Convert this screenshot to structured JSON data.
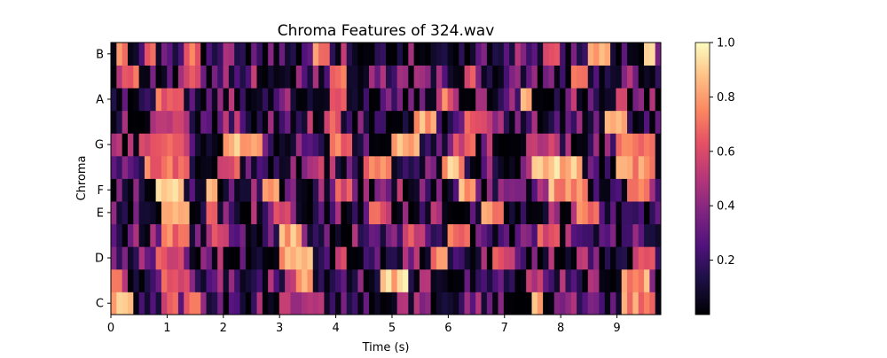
{
  "chart_data": {
    "type": "heatmap",
    "title": "Chroma Features of 324.wav",
    "xlabel": "Time (s)",
    "ylabel": "Chroma",
    "x_range": [
      0,
      9.78
    ],
    "x_ticks": [
      0,
      1,
      2,
      3,
      4,
      5,
      6,
      7,
      8,
      9
    ],
    "y_ticks": [
      "C",
      "D",
      "E",
      "F",
      "G",
      "A",
      "B"
    ],
    "pitch_classes": [
      "C",
      "C#",
      "D",
      "D#",
      "E",
      "F",
      "F#",
      "G",
      "G#",
      "A",
      "A#",
      "B"
    ],
    "frames": 98,
    "frame_duration_s": 0.0998,
    "colorbar": {
      "range": [
        0,
        1
      ],
      "ticks": [
        "0.2",
        "0.4",
        "0.6",
        "0.8",
        "1.0"
      ]
    },
    "colormap": "magma",
    "grid": false,
    "segments": {
      "C": [
        [
          0.0,
          0.35,
          0.95
        ],
        [
          0.9,
          1.2,
          0.7
        ],
        [
          1.3,
          1.6,
          0.8
        ],
        [
          3.0,
          3.8,
          0.55
        ],
        [
          7.5,
          7.7,
          0.9
        ],
        [
          9.1,
          9.7,
          0.85
        ]
      ],
      "C#": [
        [
          0.0,
          0.2,
          0.8
        ],
        [
          0.9,
          1.4,
          0.7
        ],
        [
          3.3,
          3.6,
          0.9
        ],
        [
          4.8,
          5.3,
          1.0
        ],
        [
          7.4,
          7.7,
          0.6
        ],
        [
          9.1,
          9.6,
          0.9
        ]
      ],
      "D": [
        [
          0.8,
          1.3,
          0.7
        ],
        [
          3.0,
          3.6,
          0.95
        ],
        [
          4.0,
          4.2,
          0.7
        ],
        [
          5.7,
          6.0,
          0.85
        ],
        [
          6.8,
          7.2,
          0.7
        ],
        [
          9.4,
          9.7,
          0.7
        ]
      ],
      "D#": [
        [
          0.9,
          1.4,
          0.8
        ],
        [
          1.8,
          2.1,
          0.7
        ],
        [
          3.0,
          3.4,
          0.95
        ],
        [
          5.2,
          5.5,
          0.7
        ],
        [
          6.0,
          6.4,
          0.85
        ],
        [
          7.6,
          8.0,
          0.7
        ]
      ],
      "E": [
        [
          0.9,
          1.4,
          0.9
        ],
        [
          1.7,
          1.9,
          0.8
        ],
        [
          2.9,
          3.2,
          0.7
        ],
        [
          4.6,
          4.9,
          0.8
        ],
        [
          6.6,
          7.0,
          0.85
        ],
        [
          8.3,
          8.7,
          0.8
        ]
      ],
      "F": [
        [
          0.8,
          1.3,
          1.0
        ],
        [
          1.7,
          1.9,
          0.9
        ],
        [
          2.7,
          3.0,
          0.85
        ],
        [
          4.0,
          4.3,
          0.7
        ],
        [
          6.2,
          6.5,
          0.9
        ],
        [
          7.8,
          8.5,
          0.9
        ],
        [
          9.2,
          9.6,
          0.8
        ]
      ],
      "F#": [
        [
          0.6,
          1.4,
          0.8
        ],
        [
          1.9,
          2.3,
          0.7
        ],
        [
          3.5,
          3.8,
          0.6
        ],
        [
          4.5,
          5.0,
          0.8
        ],
        [
          5.9,
          6.3,
          0.95
        ],
        [
          7.5,
          8.4,
          1.0
        ],
        [
          9.0,
          9.7,
          0.85
        ]
      ],
      "G": [
        [
          0.5,
          1.4,
          0.7
        ],
        [
          2.0,
          2.7,
          1.0
        ],
        [
          3.9,
          4.3,
          0.8
        ],
        [
          5.0,
          5.5,
          0.9
        ],
        [
          6.1,
          6.5,
          0.7
        ],
        [
          7.4,
          8.0,
          0.6
        ],
        [
          9.0,
          9.7,
          0.8
        ]
      ],
      "G#": [
        [
          0.8,
          1.4,
          0.6
        ],
        [
          3.8,
          4.1,
          0.7
        ],
        [
          5.4,
          5.8,
          0.95
        ],
        [
          6.3,
          6.7,
          0.7
        ],
        [
          8.8,
          9.2,
          0.9
        ]
      ],
      "A": [
        [
          0.8,
          1.3,
          0.75
        ],
        [
          3.9,
          4.2,
          0.7
        ],
        [
          5.9,
          6.1,
          0.8
        ],
        [
          7.3,
          7.5,
          0.9
        ],
        [
          9.0,
          9.2,
          0.7
        ]
      ],
      "A#": [
        [
          0.2,
          0.5,
          0.8
        ],
        [
          1.3,
          1.6,
          0.7
        ],
        [
          3.9,
          4.2,
          0.85
        ],
        [
          6.3,
          6.5,
          0.7
        ],
        [
          8.2,
          8.5,
          0.8
        ]
      ],
      "B": [
        [
          0.1,
          0.3,
          0.9
        ],
        [
          0.6,
          0.8,
          0.7
        ],
        [
          1.3,
          1.6,
          0.8
        ],
        [
          3.6,
          3.9,
          0.85
        ],
        [
          7.7,
          8.0,
          0.7
        ],
        [
          8.5,
          8.9,
          0.9
        ],
        [
          9.5,
          9.7,
          0.95
        ]
      ]
    }
  }
}
